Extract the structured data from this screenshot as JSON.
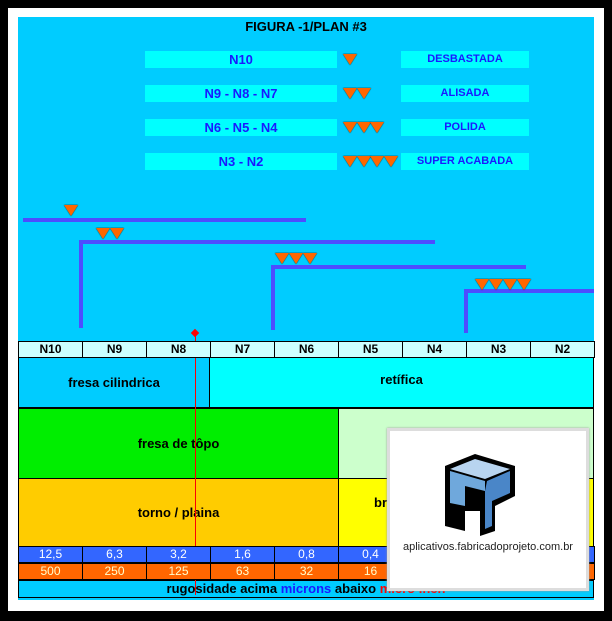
{
  "title": "FIGURA -1/PLAN #3",
  "legend": [
    {
      "grade": "N10",
      "triangles": 1,
      "finish": "DESBASTADA"
    },
    {
      "grade": "N9 - N8 - N7",
      "triangles": 2,
      "finish": "ALISADA"
    },
    {
      "grade": "N6 - N5 - N4",
      "triangles": 3,
      "finish": "POLIDA"
    },
    {
      "grade": "N3 -  N2",
      "triangles": 4,
      "finish": "SUPER ACABADA"
    }
  ],
  "columns": [
    "N10",
    "N9",
    "N8",
    "N7",
    "N6",
    "N5",
    "N4",
    "N3",
    "N2"
  ],
  "processes": {
    "fresa_cilindrica": "fresa cilindrica",
    "retifica": "retífica",
    "fresa_topo": "fresa de tôpo",
    "torno": "torno / plaina",
    "br": "br"
  },
  "microns": [
    "12,5",
    "6,3",
    "3,2",
    "1,6",
    "0,8",
    "0,4"
  ],
  "microinch": [
    "500",
    "250",
    "125",
    "63",
    "32",
    "16"
  ],
  "footer": {
    "a": "rugosidade acima ",
    "b": "microns",
    "c": " abaixo ",
    "d": "micro inch"
  },
  "overlay": {
    "url": "aplicativos.fabricadoprojeto.com.br"
  },
  "colors": {
    "triangle": "#ff6600",
    "blue_row": "#3366ff",
    "orange_row": "#ff6600",
    "green": "#00ee00",
    "gold": "#ffcc00"
  }
}
